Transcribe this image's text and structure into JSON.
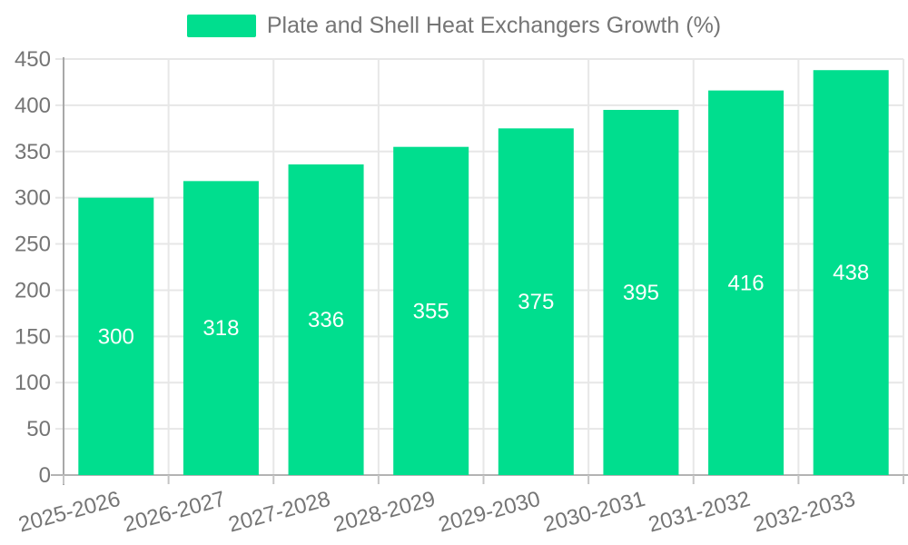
{
  "legend": {
    "label": "Plate and Shell Heat Exchangers Growth (%)"
  },
  "chart_data": {
    "type": "bar",
    "title": "Plate and Shell Heat Exchangers Growth (%)",
    "categories": [
      "2025-2026",
      "2026-2027",
      "2027-2028",
      "2028-2029",
      "2029-2030",
      "2030-2031",
      "2031-2032",
      "2032-2033"
    ],
    "series": [
      {
        "name": "Plate and Shell Heat Exchangers Growth (%)",
        "values": [
          300,
          318,
          336,
          355,
          375,
          395,
          416,
          438
        ]
      }
    ],
    "xlabel": "",
    "ylabel": "",
    "ylim": [
      0,
      450
    ],
    "ytick_step": 50,
    "yticks": [
      0,
      50,
      100,
      150,
      200,
      250,
      300,
      350,
      400,
      450
    ],
    "grid": true,
    "legend_position": "top",
    "value_labels": "inside-center",
    "x_label_rotation": -15,
    "colors": {
      "bar": "#00DE8E",
      "value_label": "#ffffff",
      "axis_text": "#757575",
      "grid_line": "#e7e7e7",
      "axis_line": "#a8a8a8",
      "x_axis_line": "#b3b3b3",
      "tick": "#c4c4c4",
      "background": "#ffffff"
    }
  }
}
